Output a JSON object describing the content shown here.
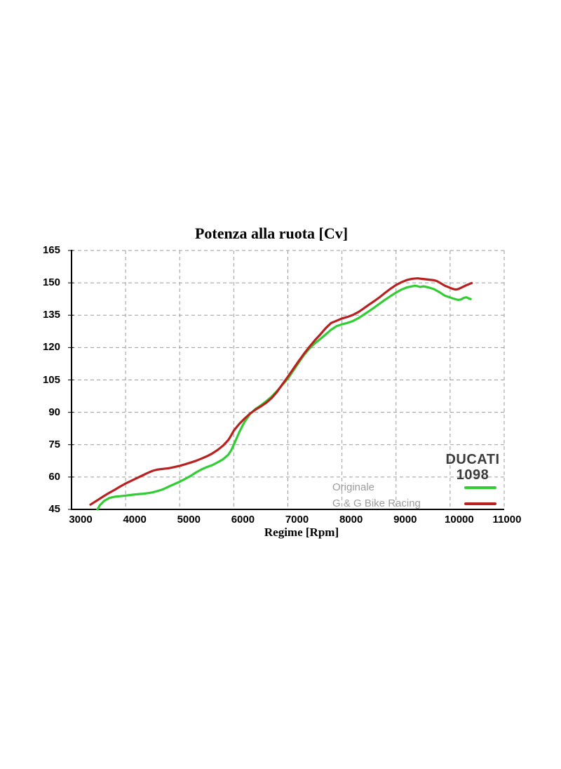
{
  "chart_data": {
    "type": "line",
    "title": "Potenza alla ruota [Cv]",
    "xlabel": "Regime [Rpm]",
    "ylabel": "",
    "x_axis": {
      "min": 3000,
      "max": 11000,
      "ticks": [
        3000,
        4000,
        5000,
        6000,
        7000,
        8000,
        9000,
        10000,
        11000
      ]
    },
    "y_axis": {
      "min": 45,
      "max": 165,
      "ticks": [
        45,
        60,
        75,
        90,
        105,
        120,
        135,
        150,
        165
      ]
    },
    "grid": "dashed",
    "grid_color": "#9b9b9b",
    "axis_color": "#000000",
    "legend_position": "bottom-right",
    "series": [
      {
        "name": "Originale",
        "color": "#32cd32",
        "points": [
          [
            3480,
            45.0
          ],
          [
            3520,
            46.8
          ],
          [
            3600,
            48.9
          ],
          [
            3700,
            50.3
          ],
          [
            3800,
            50.9
          ],
          [
            3900,
            51.1
          ],
          [
            4000,
            51.4
          ],
          [
            4100,
            51.7
          ],
          [
            4200,
            52.0
          ],
          [
            4300,
            52.2
          ],
          [
            4400,
            52.5
          ],
          [
            4500,
            52.9
          ],
          [
            4600,
            53.6
          ],
          [
            4700,
            54.4
          ],
          [
            4800,
            55.6
          ],
          [
            4900,
            56.7
          ],
          [
            5000,
            57.8
          ],
          [
            5100,
            59.1
          ],
          [
            5200,
            60.5
          ],
          [
            5300,
            62.1
          ],
          [
            5400,
            63.5
          ],
          [
            5500,
            64.6
          ],
          [
            5600,
            65.5
          ],
          [
            5700,
            66.8
          ],
          [
            5800,
            68.2
          ],
          [
            5900,
            70.4
          ],
          [
            5950,
            72.3
          ],
          [
            6000,
            75.0
          ],
          [
            6050,
            77.8
          ],
          [
            6100,
            80.7
          ],
          [
            6150,
            83.2
          ],
          [
            6200,
            85.6
          ],
          [
            6300,
            89.2
          ],
          [
            6400,
            91.5
          ],
          [
            6500,
            93.2
          ],
          [
            6600,
            95.1
          ],
          [
            6700,
            97.3
          ],
          [
            6800,
            99.9
          ],
          [
            6900,
            102.8
          ],
          [
            7000,
            105.6
          ],
          [
            7100,
            109.3
          ],
          [
            7200,
            113.0
          ],
          [
            7300,
            116.6
          ],
          [
            7400,
            119.6
          ],
          [
            7500,
            122.0
          ],
          [
            7600,
            124.0
          ],
          [
            7700,
            126.1
          ],
          [
            7800,
            128.3
          ],
          [
            7900,
            129.9
          ],
          [
            8000,
            130.8
          ],
          [
            8100,
            131.4
          ],
          [
            8200,
            132.3
          ],
          [
            8300,
            133.6
          ],
          [
            8400,
            135.2
          ],
          [
            8500,
            136.9
          ],
          [
            8600,
            138.6
          ],
          [
            8700,
            140.4
          ],
          [
            8800,
            142.2
          ],
          [
            8900,
            143.9
          ],
          [
            9000,
            145.5
          ],
          [
            9100,
            146.9
          ],
          [
            9200,
            147.9
          ],
          [
            9300,
            148.4
          ],
          [
            9350,
            148.7
          ],
          [
            9400,
            148.4
          ],
          [
            9450,
            148.1
          ],
          [
            9500,
            148.4
          ],
          [
            9600,
            147.9
          ],
          [
            9700,
            147.1
          ],
          [
            9800,
            145.7
          ],
          [
            9900,
            144.1
          ],
          [
            10000,
            143.2
          ],
          [
            10100,
            142.4
          ],
          [
            10150,
            142.1
          ],
          [
            10200,
            142.3
          ],
          [
            10250,
            143.0
          ],
          [
            10300,
            143.3
          ],
          [
            10350,
            142.7
          ],
          [
            10380,
            142.5
          ]
        ]
      },
      {
        "name": "G & G Bike Racing",
        "color": "#b92121",
        "points": [
          [
            3350,
            47.2
          ],
          [
            3400,
            48.0
          ],
          [
            3500,
            49.6
          ],
          [
            3600,
            51.2
          ],
          [
            3700,
            52.7
          ],
          [
            3800,
            54.1
          ],
          [
            3900,
            55.6
          ],
          [
            4000,
            57.0
          ],
          [
            4100,
            58.2
          ],
          [
            4200,
            59.4
          ],
          [
            4300,
            60.6
          ],
          [
            4400,
            61.8
          ],
          [
            4500,
            62.9
          ],
          [
            4550,
            63.2
          ],
          [
            4600,
            63.5
          ],
          [
            4700,
            63.8
          ],
          [
            4800,
            64.1
          ],
          [
            4900,
            64.6
          ],
          [
            5000,
            65.2
          ],
          [
            5100,
            65.9
          ],
          [
            5200,
            66.7
          ],
          [
            5300,
            67.5
          ],
          [
            5400,
            68.5
          ],
          [
            5500,
            69.6
          ],
          [
            5600,
            70.9
          ],
          [
            5700,
            72.5
          ],
          [
            5800,
            74.5
          ],
          [
            5900,
            77.2
          ],
          [
            5950,
            79.2
          ],
          [
            6000,
            81.5
          ],
          [
            6100,
            84.6
          ],
          [
            6200,
            87.1
          ],
          [
            6300,
            89.4
          ],
          [
            6400,
            91.2
          ],
          [
            6500,
            92.7
          ],
          [
            6600,
            94.4
          ],
          [
            6700,
            96.6
          ],
          [
            6800,
            99.5
          ],
          [
            6900,
            103.0
          ],
          [
            7000,
            106.5
          ],
          [
            7100,
            110.1
          ],
          [
            7200,
            113.7
          ],
          [
            7300,
            117.2
          ],
          [
            7400,
            120.4
          ],
          [
            7500,
            123.4
          ],
          [
            7600,
            126.1
          ],
          [
            7700,
            129.0
          ],
          [
            7800,
            131.4
          ],
          [
            7900,
            132.4
          ],
          [
            8000,
            133.5
          ],
          [
            8100,
            134.2
          ],
          [
            8200,
            135.1
          ],
          [
            8300,
            136.4
          ],
          [
            8400,
            138.1
          ],
          [
            8500,
            139.9
          ],
          [
            8600,
            141.6
          ],
          [
            8700,
            143.4
          ],
          [
            8800,
            145.4
          ],
          [
            8900,
            147.3
          ],
          [
            9000,
            149.0
          ],
          [
            9100,
            150.3
          ],
          [
            9200,
            151.3
          ],
          [
            9300,
            151.9
          ],
          [
            9400,
            152.1
          ],
          [
            9500,
            151.8
          ],
          [
            9600,
            151.5
          ],
          [
            9700,
            151.2
          ],
          [
            9750,
            150.9
          ],
          [
            9800,
            150.2
          ],
          [
            9900,
            148.7
          ],
          [
            10000,
            147.7
          ],
          [
            10050,
            147.2
          ],
          [
            10100,
            146.9
          ],
          [
            10150,
            147.1
          ],
          [
            10200,
            147.7
          ],
          [
            10300,
            148.9
          ],
          [
            10400,
            149.9
          ]
        ]
      }
    ]
  },
  "legend": {
    "brand_line1": "DUCATI",
    "brand_line2": "1098",
    "text_color": "#9c9c9c",
    "entries": [
      {
        "label": "Originale",
        "color": "#32cd32"
      },
      {
        "label": "G & G Bike Racing",
        "color": "#b92121"
      }
    ]
  }
}
